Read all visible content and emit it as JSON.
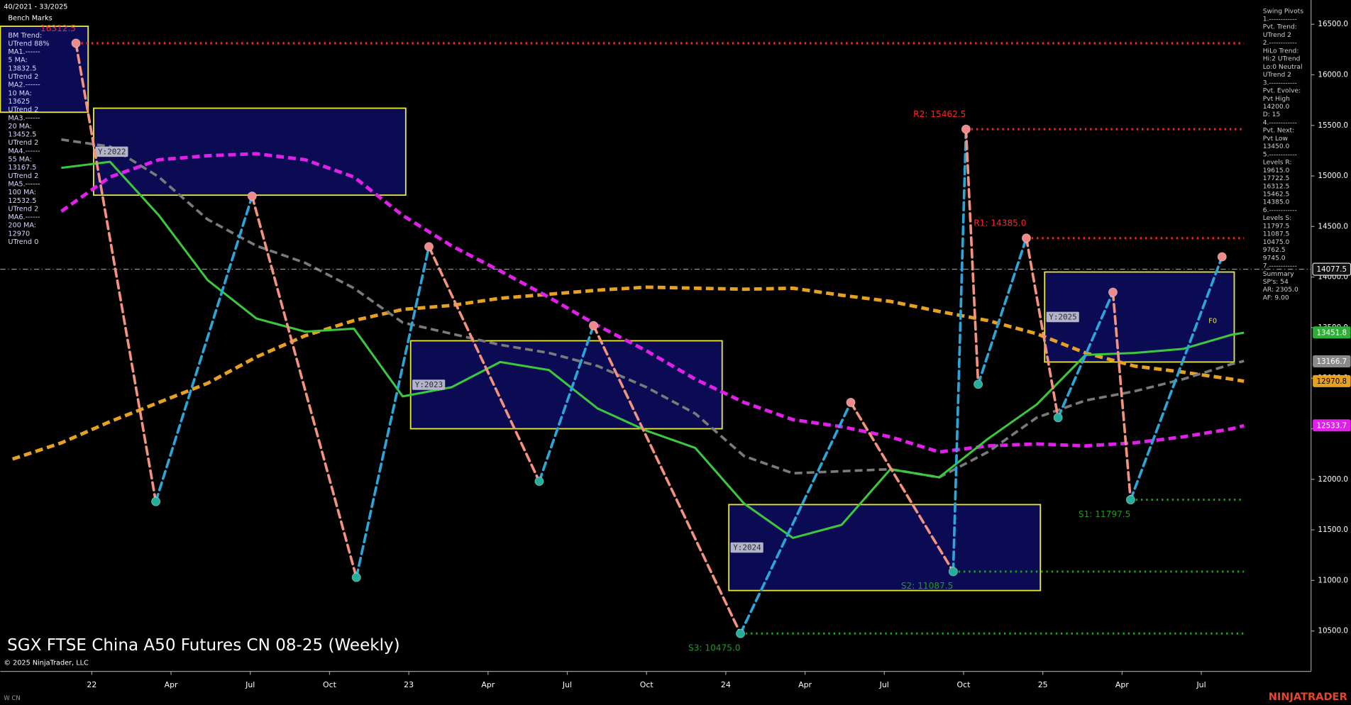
{
  "chart_data": {
    "type": "line",
    "title": "SGX FTSE China A50 Futures CN 08-25 (Weekly)",
    "copyright": "© 2025 NinjaTrader, LLC",
    "date_range": "40/2021 - 33/2025",
    "bench_marks": "Bench Marks",
    "footer": "W CN",
    "brand": "NINJATRADER",
    "annotation": "F0",
    "xlim": [
      -2,
      213
    ],
    "ylim": [
      10100,
      16740
    ],
    "xticks": [
      {
        "value": 13,
        "label": "22"
      },
      {
        "value": 26,
        "label": "Apr"
      },
      {
        "value": 39,
        "label": "Jul"
      },
      {
        "value": 52,
        "label": "Oct"
      },
      {
        "value": 65,
        "label": "23"
      },
      {
        "value": 78,
        "label": "Apr"
      },
      {
        "value": 91,
        "label": "Jul"
      },
      {
        "value": 104,
        "label": "Oct"
      },
      {
        "value": 117,
        "label": "24"
      },
      {
        "value": 130,
        "label": "Apr"
      },
      {
        "value": 143,
        "label": "Jul"
      },
      {
        "value": 156,
        "label": "Oct"
      },
      {
        "value": 169,
        "label": "25"
      },
      {
        "value": 182,
        "label": "Apr"
      },
      {
        "value": 195,
        "label": "Jul"
      }
    ],
    "yticks": [
      {
        "value": 10500,
        "label": "10500.0"
      },
      {
        "value": 11000,
        "label": "11000.0"
      },
      {
        "value": 11500,
        "label": "11500.0"
      },
      {
        "value": 12000,
        "label": "12000.0"
      },
      {
        "value": 12500,
        "label": "12500.0"
      },
      {
        "value": 13000,
        "label": "13000.0"
      },
      {
        "value": 13500,
        "label": "13500.0"
      },
      {
        "value": 14000,
        "label": "14000.0"
      },
      {
        "value": 14500,
        "label": "14500.0"
      },
      {
        "value": 15000,
        "label": "15000.0"
      },
      {
        "value": 15500,
        "label": "15500.0"
      },
      {
        "value": 16000,
        "label": "16000.0"
      },
      {
        "value": 16500,
        "label": "16500.0"
      }
    ],
    "x": [
      0,
      8,
      16,
      24,
      32,
      40,
      48,
      56,
      64,
      72,
      80,
      88,
      96,
      104,
      112,
      120,
      128,
      136,
      144,
      152,
      160,
      168,
      176,
      184,
      192,
      200,
      202
    ],
    "series": [
      {
        "color": "#e6a122",
        "dash": true,
        "width": 4,
        "values": [
          12200,
          12360,
          12570,
          12760,
          12950,
          13210,
          13420,
          13570,
          13680,
          13720,
          13790,
          13830,
          13870,
          13900,
          13890,
          13880,
          13890,
          13820,
          13760,
          13660,
          13570,
          13440,
          13250,
          13120,
          13060,
          12990,
          12970
        ]
      },
      {
        "color": "#e020e8",
        "dash": true,
        "width": 4,
        "values": [
          null,
          14650,
          14990,
          15160,
          15200,
          15220,
          15160,
          14990,
          14610,
          14310,
          14060,
          13800,
          13520,
          13270,
          12990,
          12760,
          12590,
          12520,
          12420,
          12270,
          12330,
          12350,
          12330,
          12360,
          12420,
          12500,
          12530
        ]
      },
      {
        "color": "#7a7a7a",
        "dash": true,
        "width": 3,
        "values": [
          null,
          15360,
          15290,
          14990,
          14570,
          14310,
          14140,
          13890,
          13550,
          13440,
          13330,
          13250,
          13120,
          12910,
          12650,
          12230,
          12060,
          12080,
          12100,
          12020,
          12270,
          12610,
          12780,
          12870,
          12990,
          13140,
          13170
        ]
      },
      {
        "color": "#3cc83c",
        "dash": false,
        "width": 2.5,
        "values": [
          null,
          15080,
          15140,
          14610,
          13970,
          13590,
          13460,
          13490,
          12820,
          12910,
          13160,
          13080,
          12700,
          12480,
          12310,
          11760,
          11420,
          11550,
          12100,
          12020,
          12400,
          12740,
          13230,
          13250,
          13290,
          13430,
          13450
        ]
      }
    ],
    "pivots": {
      "x": [
        10.4,
        23.5,
        39.3,
        56.4,
        68.3,
        86.4,
        95.3,
        119.4,
        137.5,
        154.3,
        156.4,
        158.4,
        166.3,
        171.5,
        180.5,
        183.4,
        198.4
      ],
      "values": [
        16312.5,
        11780,
        14800,
        11030,
        14300,
        11980,
        13520,
        10475,
        12760,
        11087.5,
        15462.5,
        12940,
        14385,
        12610,
        13850,
        11797.5,
        14200
      ],
      "up_color": "#2aa6d8",
      "down_color": "#f3927e",
      "high_color": "#f08a8a",
      "low_color": "#22b09c"
    },
    "levels": [
      {
        "label": "16312.5",
        "value": 16312.5,
        "start": 10.4,
        "color": "#ff2424",
        "side": "above"
      },
      {
        "label": "R2: 15462.5",
        "value": 15462.5,
        "start": 156.4,
        "color": "#ff2424",
        "side": "above"
      },
      {
        "label": "R1: 14385.0",
        "value": 14385,
        "start": 166.3,
        "color": "#ff2424",
        "side": "above"
      },
      {
        "label": "S1: 11797.5",
        "value": 11797.5,
        "start": 183.4,
        "color": "#1f9a1f",
        "side": "below"
      },
      {
        "label": "S2: 11087.5",
        "value": 11087.5,
        "start": 154.3,
        "color": "#1f9a1f",
        "side": "below"
      },
      {
        "label": "S3: 10475.0",
        "value": 10475,
        "start": 119.4,
        "color": "#1f9a1f",
        "side": "below"
      }
    ],
    "year_boxes": [
      {
        "x0": -2,
        "x1": 12.4,
        "high": 16480,
        "low": 15630
      },
      {
        "label": "Y:2022",
        "x0": 13.3,
        "x1": 64.5,
        "high": 15670,
        "low": 14810
      },
      {
        "label": "Y:2023",
        "x0": 65.3,
        "x1": 116.4,
        "high": 13370,
        "low": 12500
      },
      {
        "label": "Y:2024",
        "x0": 117.5,
        "x1": 168.6,
        "high": 11750,
        "low": 10900
      },
      {
        "label": "Y:2025",
        "x0": 169.3,
        "x1": 200.4,
        "high": 14050,
        "low": 13160
      }
    ],
    "price": 14077.5,
    "last_labels": [
      {
        "value": 13451.8,
        "color": "#2fae3a",
        "text_color": "#ffffff"
      },
      {
        "value": 13166.7,
        "color": "#8a8a8a",
        "text_color": "#ffffff"
      },
      {
        "value": 12970.8,
        "color": "#e6a122",
        "text_color": "#000000"
      },
      {
        "value": 12533.7,
        "color": "#e020e8",
        "text_color": "#ffffff"
      }
    ],
    "left_panel": [
      "BM Trend:",
      "UTrend 88%",
      "MA1.------",
      "5 MA:",
      "13832.5",
      "UTrend 2",
      "MA2.------",
      "10 MA:",
      "13625",
      "UTrend 2",
      "MA3.------",
      "20 MA:",
      "13452.5",
      "UTrend 2",
      "MA4.------",
      "55 MA:",
      "13167.5",
      "UTrend 2",
      "MA5.------",
      "100 MA:",
      "12532.5",
      "UTrend 2",
      "MA6.------",
      "200 MA:",
      "12970",
      "UTrend 0"
    ],
    "right_panel": [
      "Swing Pivots",
      "1.------------",
      "Pvt. Trend:",
      "UTrend 2",
      "2.------------",
      "HiLo Trend:",
      "Hi:2 UTrend",
      "Lo:0 Neutral",
      "UTrend 2",
      "3.------------",
      "Pvt. Evolve:",
      "Pvt High",
      "14200.0",
      "D: 15",
      "4.------------",
      "Pvt. Next:",
      "Pvt Low",
      "13450.0",
      "5.------------",
      "Levels R:",
      "19615.0",
      "17722.5",
      "16312.5",
      "15462.5",
      "14385.0",
      "6.------------",
      "Levels S:",
      "11797.5",
      "11087.5",
      "10475.0",
      "9762.5",
      "9745.0",
      "7.------------",
      "Summary",
      "SP's: 54",
      "AR: 2305.0",
      "AF: 9.00"
    ]
  }
}
